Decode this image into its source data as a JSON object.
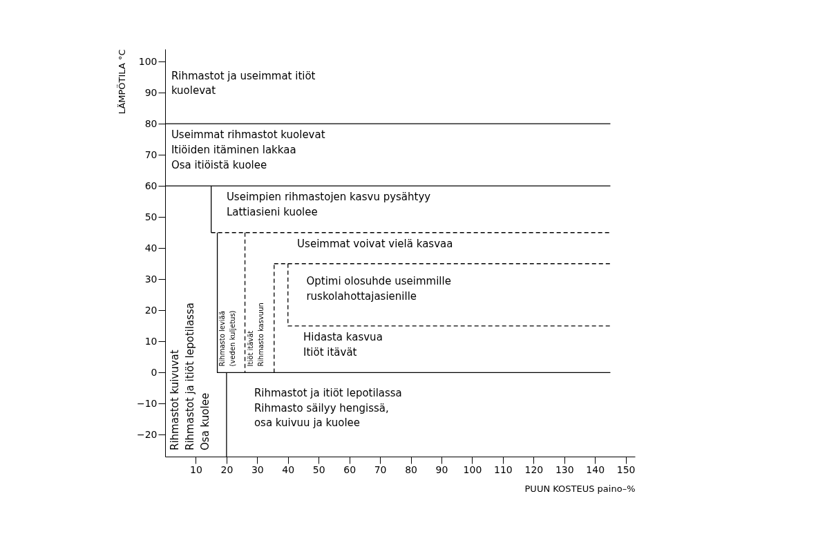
{
  "chart_data": {
    "type": "line",
    "xlabel": "PUUN KOSTEUS paino–%",
    "ylabel": "LÄMPÖTILA °C",
    "xlim": [
      0,
      153
    ],
    "ylim": [
      -27,
      104
    ],
    "xticks": [
      10,
      20,
      30,
      40,
      50,
      60,
      70,
      80,
      90,
      100,
      110,
      120,
      130,
      140,
      150
    ],
    "yticks": [
      -20,
      -10,
      0,
      10,
      20,
      30,
      40,
      50,
      60,
      70,
      80,
      90,
      100
    ],
    "grid": false,
    "legend": false,
    "series": [
      {
        "x": [
          0,
          145
        ],
        "values": [
          80,
          80
        ],
        "color": "#000000",
        "line_style": "solid"
      },
      {
        "x": [
          0,
          145
        ],
        "values": [
          60,
          60
        ],
        "color": "#000000",
        "line_style": "solid"
      },
      {
        "x": [
          15,
          15
        ],
        "values": [
          60,
          45
        ],
        "color": "#000000",
        "line_style": "solid"
      },
      {
        "x": [
          15,
          145
        ],
        "values": [
          45,
          45
        ],
        "color": "#000000",
        "line_style": "dashed"
      },
      {
        "x": [
          17,
          17,
          145
        ],
        "values": [
          45,
          0,
          0
        ],
        "color": "#000000",
        "line_style": "solid"
      },
      {
        "x": [
          20,
          20
        ],
        "values": [
          0,
          -27
        ],
        "color": "#000000",
        "line_style": "solid"
      },
      {
        "x": [
          26,
          26
        ],
        "values": [
          45,
          0
        ],
        "color": "#000000",
        "line_style": "dashed"
      },
      {
        "x": [
          35.5,
          35.5
        ],
        "values": [
          0,
          35
        ],
        "color": "#000000",
        "line_style": "dashed"
      },
      {
        "x": [
          35.5,
          145
        ],
        "values": [
          35,
          35
        ],
        "color": "#000000",
        "line_style": "dashed"
      },
      {
        "x": [
          40,
          40,
          145
        ],
        "values": [
          35,
          15,
          15
        ],
        "color": "#000000",
        "line_style": "dashed"
      }
    ],
    "annotations": [
      "Rihmastot ja useimmat itiöt\nkuolevat",
      "Useimmat rihmastot kuolevat\nItiöiden itäminen lakkaa\nOsa itiöistä kuolee",
      "Useimpien rihmastojen kasvu pysähtyy\nLattiasieni kuolee",
      "Useimmat voivat vielä kasvaa",
      "Optimi olosuhde useimmille\nruskolahottajasienille",
      "Hidasta kasvua\nItiöt itävät",
      "Rihmastot ja itiöt lepotilassa\nRihmasto säilyy hengissä,\nosa kuivuu ja kuolee",
      "Rihmastot kuivuvat\nRihmastot ja itiöt lepotilassa\nOsa kuolee",
      "Rihmasto leviää\n(veden kuljetus)",
      "Itiöt itävät\nRihmasto kasvuun"
    ]
  }
}
